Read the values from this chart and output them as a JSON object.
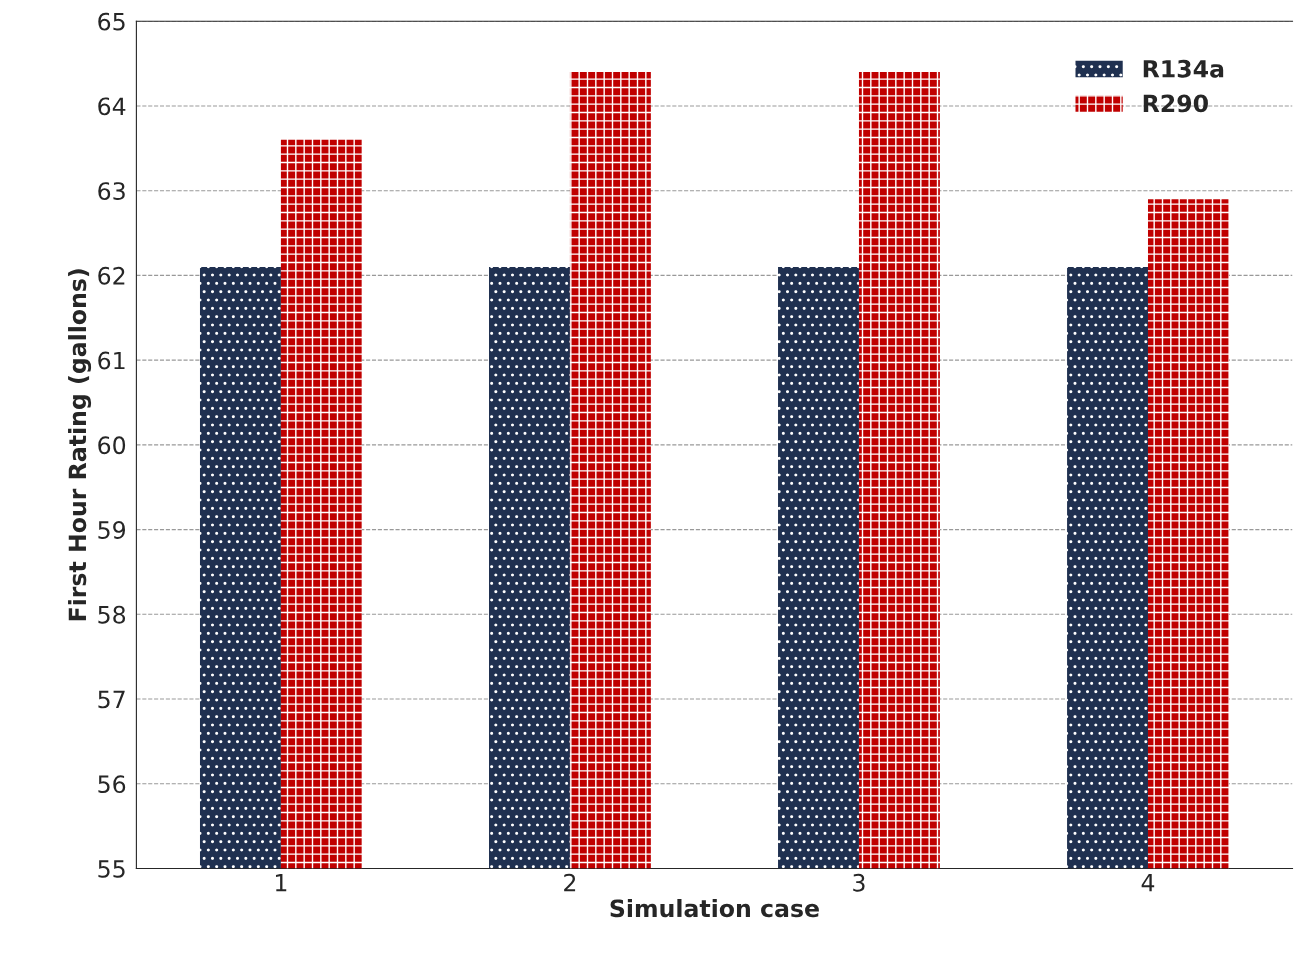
{
  "chart_data": {
    "type": "bar",
    "xlabel": "Simulation case",
    "ylabel": "First Hour Rating (gallons)",
    "categories": [
      "1",
      "2",
      "3",
      "4"
    ],
    "series": [
      {
        "name": "R134a",
        "color": "#1f3050",
        "values": [
          62.1,
          62.1,
          62.1,
          62.1
        ]
      },
      {
        "name": "R290",
        "color": "#c00000",
        "values": [
          63.6,
          64.4,
          64.4,
          62.9
        ]
      }
    ],
    "ylim": [
      55,
      65
    ],
    "yticks": [
      55,
      56,
      57,
      58,
      59,
      60,
      61,
      62,
      63,
      64,
      65
    ],
    "grid": "y",
    "legend": "top right"
  }
}
